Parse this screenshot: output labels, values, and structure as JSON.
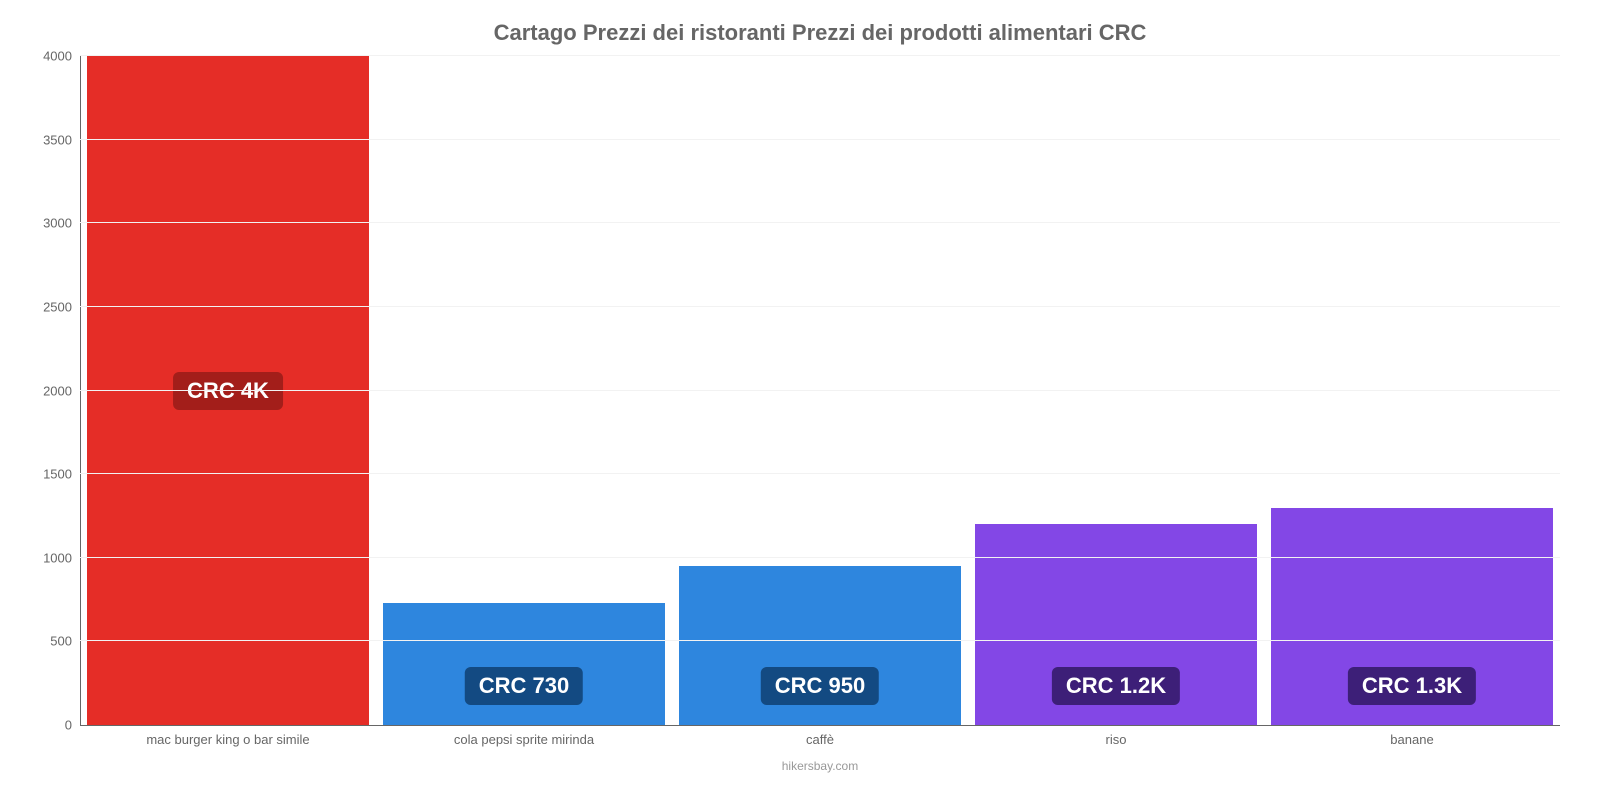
{
  "chart": {
    "type": "bar",
    "title": "Cartago Prezzi dei ristoranti Prezzi dei prodotti alimentari CRC",
    "title_color": "#666666",
    "title_fontsize": 22,
    "background_color": "#ffffff",
    "grid_color": "#f2f2f2",
    "axis_color": "#666666",
    "label_fontsize": 13,
    "ylim": [
      0,
      4000
    ],
    "ytick_step": 500,
    "y_ticks": [
      0,
      500,
      1000,
      1500,
      2000,
      2500,
      3000,
      3500,
      4000
    ],
    "bar_width": 0.95,
    "categories": [
      "mac burger king o bar simile",
      "cola pepsi sprite mirinda",
      "caffè",
      "riso",
      "banane"
    ],
    "values": [
      4000,
      730,
      950,
      1200,
      1300
    ],
    "value_labels": [
      "CRC 4K",
      "CRC 730",
      "CRC 950",
      "CRC 1.2K",
      "CRC 1.3K"
    ],
    "bar_colors": [
      "#e52d27",
      "#2e86de",
      "#2e86de",
      "#8347e6",
      "#8347e6"
    ],
    "label_box_colors": [
      "#a31e1a",
      "#134a82",
      "#134a82",
      "#3d1f78",
      "#3d1f78"
    ],
    "label_text_color": "#ffffff",
    "label_box_fontsize": 22,
    "label_offsets": [
      "center",
      "offset",
      "offset",
      "offset",
      "offset"
    ],
    "credit": "hikersbay.com"
  }
}
